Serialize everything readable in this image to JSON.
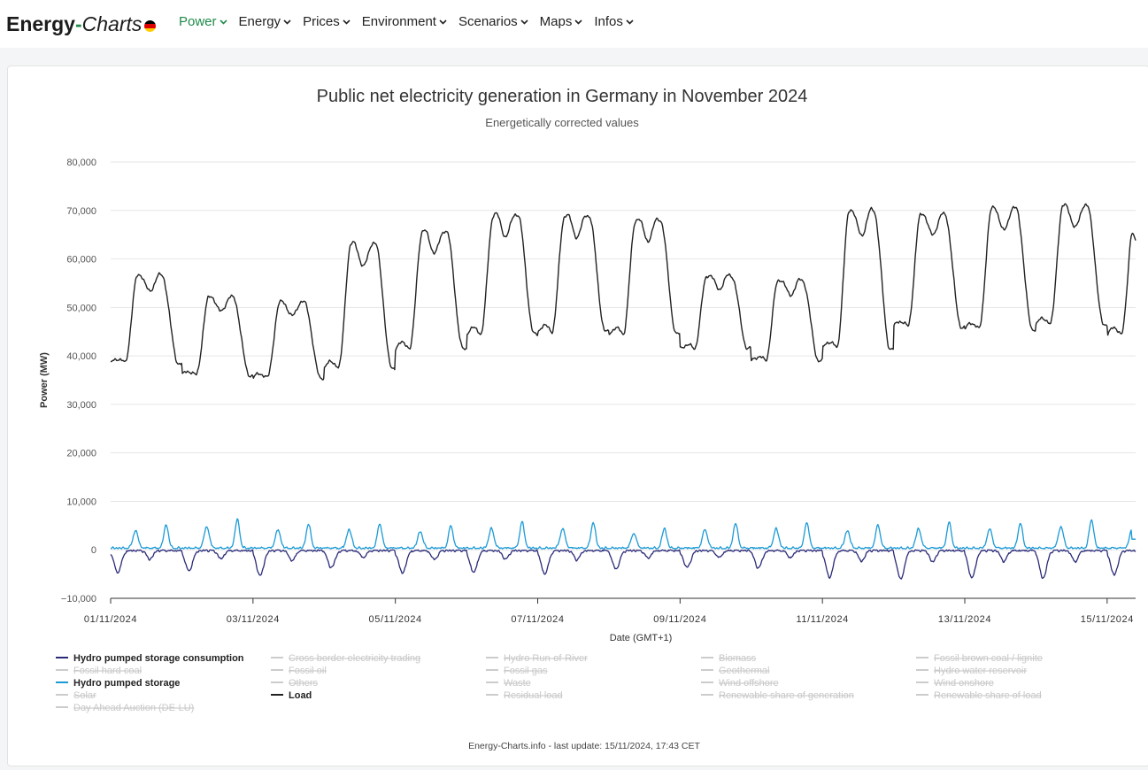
{
  "brand": {
    "part1": "Energy",
    "dash": "-",
    "part2": "Charts"
  },
  "flag_colors": [
    "#000000",
    "#dd0000",
    "#ffce00"
  ],
  "nav": {
    "items": [
      {
        "label": "Power",
        "active": true
      },
      {
        "label": "Energy",
        "active": false
      },
      {
        "label": "Prices",
        "active": false
      },
      {
        "label": "Environment",
        "active": false
      },
      {
        "label": "Scenarios",
        "active": false
      },
      {
        "label": "Maps",
        "active": false
      },
      {
        "label": "Infos",
        "active": false
      }
    ],
    "chevron": "⌄"
  },
  "chart_data": {
    "type": "line",
    "title": "Public net electricity generation in Germany in November 2024",
    "subtitle": "Energetically corrected values",
    "xlabel": "Date (GMT+1)",
    "ylabel": "Power (MW)",
    "ylim": [
      -10000,
      80000
    ],
    "y_ticks": [
      "80,000",
      "70,000",
      "60,000",
      "50,000",
      "40,000",
      "30,000",
      "20,000",
      "10,000",
      "0",
      "−10,000"
    ],
    "y_tick_values": [
      80000,
      70000,
      60000,
      50000,
      40000,
      30000,
      20000,
      10000,
      0,
      -10000
    ],
    "xlim_days": [
      0,
      14.4
    ],
    "x_ticks": [
      "01/11/2024",
      "03/11/2024",
      "05/11/2024",
      "07/11/2024",
      "09/11/2024",
      "11/11/2024",
      "13/11/2024",
      "15/11/2024"
    ],
    "x_tick_days": [
      0,
      2,
      4,
      6,
      8,
      10,
      12,
      14
    ],
    "grid": true,
    "series": [
      {
        "name": "Load",
        "color": "#222222",
        "daily_min": [
          38500,
          36000,
          35500,
          37500,
          41500,
          44500,
          45000,
          44500,
          41500,
          39000,
          41500,
          46000,
          45500,
          46500,
          44500
        ],
        "daily_max": [
          56500,
          52000,
          51000,
          63000,
          65500,
          69000,
          68800,
          68000,
          56500,
          55500,
          69800,
          69000,
          70300,
          70800,
          68200
        ],
        "end_value": 63800
      },
      {
        "name": "Hydro pumped storage",
        "color": "#1a9ad6",
        "daily_peaks": [
          4800,
          5900,
          5000,
          5100,
          4600,
          5400,
          5300,
          4100,
          5100,
          5300,
          4800,
          5300,
          5200,
          5900,
          5100
        ],
        "baseline": 200,
        "end_value": 2200
      },
      {
        "name": "Hydro pumped storage consumption",
        "color": "#2a2a78",
        "daily_lows": [
          -4500,
          -4200,
          -5200,
          -3500,
          -4600,
          -4500,
          -4800,
          -3800,
          -3500,
          -3600,
          -5500,
          -5900,
          -5600,
          -5700,
          -5000
        ],
        "baseline": 0
      }
    ],
    "legend": [
      {
        "label": "Hydro pumped storage consumption",
        "color": "#2a2a78",
        "visible": true
      },
      {
        "label": "Cross border electricity trading",
        "color": "#cccccc",
        "visible": false
      },
      {
        "label": "Hydro Run-of-River",
        "color": "#cccccc",
        "visible": false
      },
      {
        "label": "Biomass",
        "color": "#cccccc",
        "visible": false
      },
      {
        "label": "Fossil brown coal / lignite",
        "color": "#cccccc",
        "visible": false
      },
      {
        "label": "Fossil hard coal",
        "color": "#cccccc",
        "visible": false
      },
      {
        "label": "Fossil oil",
        "color": "#cccccc",
        "visible": false
      },
      {
        "label": "Fossil gas",
        "color": "#cccccc",
        "visible": false
      },
      {
        "label": "Geothermal",
        "color": "#cccccc",
        "visible": false
      },
      {
        "label": "Hydro water reservoir",
        "color": "#cccccc",
        "visible": false
      },
      {
        "label": "Hydro pumped storage",
        "color": "#1a9ad6",
        "visible": true
      },
      {
        "label": "Others",
        "color": "#cccccc",
        "visible": false
      },
      {
        "label": "Waste",
        "color": "#cccccc",
        "visible": false
      },
      {
        "label": "Wind offshore",
        "color": "#cccccc",
        "visible": false
      },
      {
        "label": "Wind onshore",
        "color": "#cccccc",
        "visible": false
      },
      {
        "label": "Solar",
        "color": "#cccccc",
        "visible": false
      },
      {
        "label": "Load",
        "color": "#222222",
        "visible": true
      },
      {
        "label": "Residual load",
        "color": "#cccccc",
        "visible": false
      },
      {
        "label": "Renewable share of generation",
        "color": "#cccccc",
        "visible": false
      },
      {
        "label": "Renewable share of load",
        "color": "#cccccc",
        "visible": false
      },
      {
        "label": "Day Ahead Auction (DE-LU)",
        "color": "#cccccc",
        "visible": false
      }
    ],
    "footer": "Energy-Charts.info - last update: 15/11/2024, 17:43 CET"
  }
}
